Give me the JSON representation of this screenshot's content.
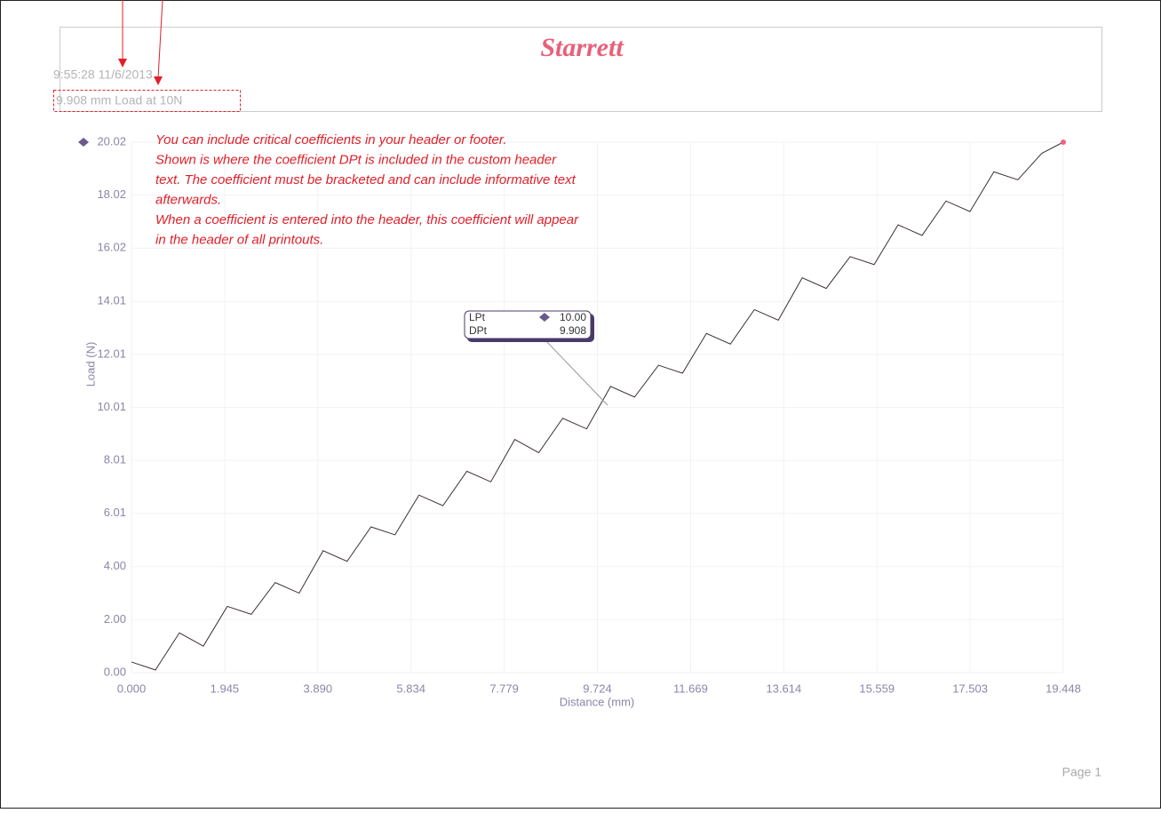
{
  "header": {
    "logo": "Starrett",
    "timestamp": "9:55:28 11/6/2013",
    "custom_text": "9.908 mm Load at 10N"
  },
  "chart_data": {
    "type": "line",
    "x_label": "Distance (mm)",
    "y_label": "Load (N)",
    "annotation": [
      "You can include critical coefficients in your header or footer.",
      "Shown is where the coefficient DPt is included in the custom header",
      "text.  The coefficient must be bracketed and can include informative text",
      "afterwards.",
      "When a coefficient is entered into the header, this coefficient will appear",
      "in the header of all printouts."
    ],
    "tooltip": {
      "rows": [
        [
          "LPt",
          "10.00"
        ],
        [
          "DPt",
          "9.908"
        ]
      ]
    },
    "x": [
      0,
      0.5,
      1.0,
      1.5,
      2.0,
      2.5,
      3.0,
      3.5,
      4.0,
      4.5,
      5.0,
      5.5,
      6.0,
      6.5,
      7.0,
      7.5,
      8.0,
      8.5,
      9.0,
      9.5,
      10.0,
      10.5,
      11.0,
      11.5,
      12.0,
      12.5,
      13.0,
      13.5,
      14.0,
      14.5,
      15.0,
      15.5,
      16.0,
      16.5,
      17.0,
      17.5,
      18.0,
      18.5,
      19.0,
      19.448
    ],
    "series": [
      {
        "name": "Load",
        "color": "#3a3038",
        "values": [
          0.4,
          0.1,
          1.5,
          1.0,
          2.5,
          2.2,
          3.4,
          3.0,
          4.6,
          4.2,
          5.5,
          5.2,
          6.7,
          6.3,
          7.6,
          7.2,
          8.8,
          8.3,
          9.6,
          9.2,
          10.8,
          10.4,
          11.6,
          11.3,
          12.8,
          12.4,
          13.7,
          13.3,
          14.9,
          14.5,
          15.7,
          15.4,
          16.9,
          16.5,
          17.8,
          17.4,
          18.9,
          18.6,
          19.6,
          20.02
        ]
      }
    ],
    "xlim": [
      0,
      19.448
    ],
    "xticks": [
      {
        "value": 0,
        "label": "0.000"
      },
      1.945,
      {
        "value": 3.89,
        "label": "3.890"
      },
      5.834,
      7.779,
      9.724,
      11.669,
      13.614,
      15.559,
      17.503,
      19.448
    ],
    "ylim": [
      0,
      20.02
    ],
    "yticks": [
      {
        "value": 0,
        "label": "0.00"
      },
      {
        "value": 2,
        "label": "2.00"
      },
      {
        "value": 4,
        "label": "4.00"
      },
      6.01,
      8.01,
      10.01,
      12.01,
      14.01,
      16.02,
      18.02,
      20.02
    ],
    "grid": true
  },
  "footer": {
    "page": "Page 1"
  }
}
